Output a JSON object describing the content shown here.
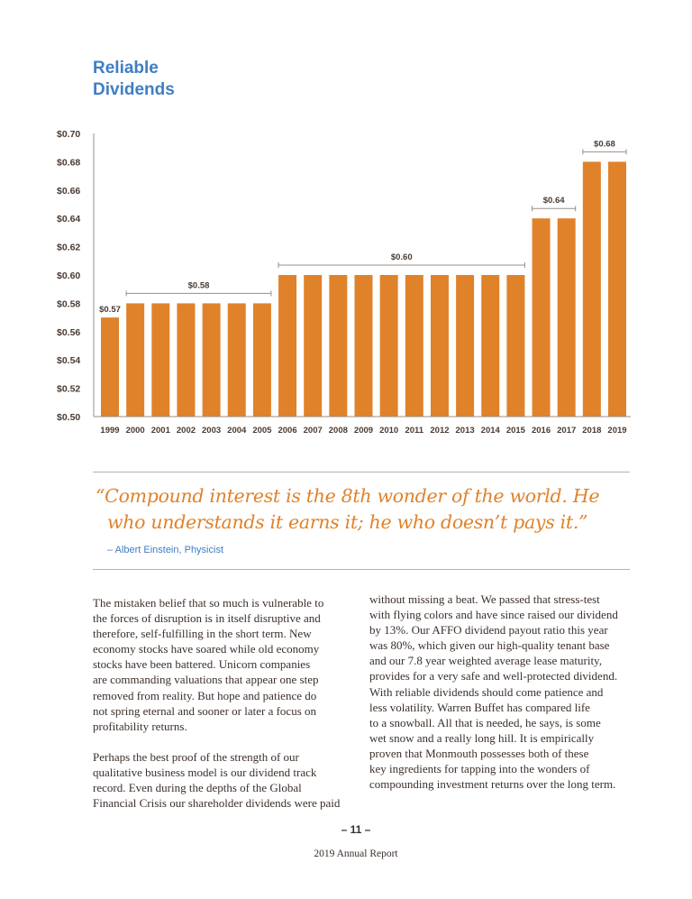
{
  "title_lines": [
    "Reliable",
    "Dividends"
  ],
  "chart_data": {
    "type": "bar",
    "title": "Reliable Dividends",
    "categories": [
      "1999",
      "2000",
      "2001",
      "2002",
      "2003",
      "2004",
      "2005",
      "2006",
      "2007",
      "2008",
      "2009",
      "2010",
      "2011",
      "2012",
      "2013",
      "2014",
      "2015",
      "2016",
      "2017",
      "2018",
      "2019"
    ],
    "values": [
      0.57,
      0.58,
      0.58,
      0.58,
      0.58,
      0.58,
      0.58,
      0.6,
      0.6,
      0.6,
      0.6,
      0.6,
      0.6,
      0.6,
      0.6,
      0.6,
      0.6,
      0.64,
      0.64,
      0.68,
      0.68
    ],
    "ylim": [
      0.5,
      0.7
    ],
    "yticks": [
      "$0.50",
      "$0.52",
      "$0.54",
      "$0.56",
      "$0.58",
      "$0.60",
      "$0.62",
      "$0.64",
      "$0.66",
      "$0.68",
      "$0.70"
    ],
    "ytick_values": [
      0.5,
      0.52,
      0.54,
      0.56,
      0.58,
      0.6,
      0.62,
      0.64,
      0.66,
      0.68,
      0.7
    ],
    "annotations": [
      {
        "label": "$0.57",
        "from": 0,
        "to": 0,
        "bracket": false
      },
      {
        "label": "$0.58",
        "from": 1,
        "to": 6,
        "bracket": true
      },
      {
        "label": "$0.60",
        "from": 7,
        "to": 16,
        "bracket": true
      },
      {
        "label": "$0.64",
        "from": 17,
        "to": 18,
        "bracket": true
      },
      {
        "label": "$0.68",
        "from": 19,
        "to": 20,
        "bracket": true
      }
    ],
    "bar_color": "#e0822a",
    "grid": false
  },
  "quote": {
    "lines": [
      "“Compound interest is the 8th wonder of the world. He",
      "who understands it earns it; he who doesn’t pays it.”"
    ],
    "attribution": "– Albert Einstein, Physicist"
  },
  "body": {
    "left_paragraphs": [
      [
        "The mistaken belief that so much is vulnerable to",
        "the forces of disruption is in itself disruptive and",
        "therefore, self-fulfilling in the short term. New",
        "economy stocks have soared while old economy",
        "stocks have been battered. Unicorn companies",
        "are commanding valuations that appear one step",
        "removed from reality. But hope and patience do",
        "not spring eternal and sooner or later a focus on",
        "profitability returns."
      ],
      [
        "Perhaps the best proof of the strength of our",
        "qualitative business model is our dividend track",
        "record. Even during the depths of the Global",
        "Financial Crisis our shareholder dividends were paid"
      ]
    ],
    "right_lines": [
      "without missing a beat. We passed that stress-test",
      "with flying colors and have since raised our dividend",
      "by 13%. Our AFFO dividend payout ratio this year",
      "was 80%, which given our high-quality tenant base",
      "and our 7.8 year weighted average lease maturity,",
      "provides for a very safe and well-protected dividend.",
      "With reliable dividends should come patience and",
      "less volatility. Warren Buffet has compared life",
      "to a snowball. All that is needed, he says, is some",
      "wet snow and a really long hill. It is empirically",
      "proven that Monmouth possesses both of these",
      "key ingredients for tapping into the wonders of",
      "compounding investment returns over the long term."
    ]
  },
  "footer": {
    "page_number": "– 11 –",
    "report_name": "2019 Annual Report"
  }
}
